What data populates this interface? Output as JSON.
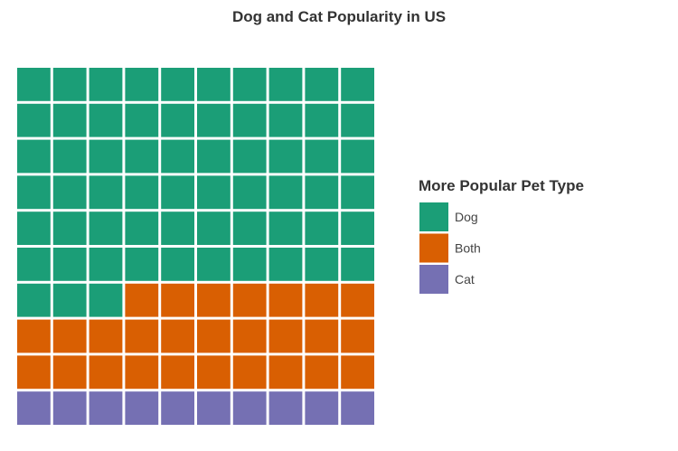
{
  "chart_data": {
    "type": "waffle",
    "title": "Dog and Cat Popularity in US",
    "legend_title": "More Popular Pet Type",
    "legend_placement": "right",
    "grid_rows": 10,
    "grid_cols": 10,
    "fill_order": "rows-top-to-bottom",
    "categories": [
      {
        "name": "Dog",
        "value": 63,
        "color": "#1b9e77"
      },
      {
        "name": "Both",
        "value": 27,
        "color": "#d95f02"
      },
      {
        "name": "Cat",
        "value": 10,
        "color": "#7570b3"
      }
    ]
  }
}
